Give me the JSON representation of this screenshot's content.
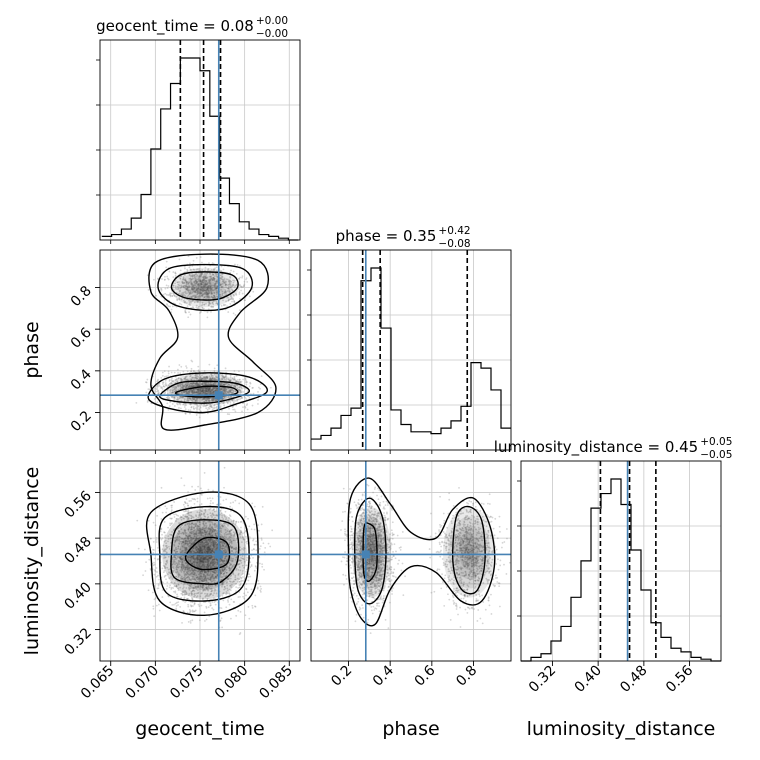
{
  "chart_data": {
    "type": "corner",
    "parameters": [
      "geocent_time",
      "phase",
      "luminosity_distance"
    ],
    "axis_labels": [
      "geocent_time",
      "phase",
      "luminosity_distance"
    ],
    "ranges": [
      [
        0.0638,
        0.0862
      ],
      [
        0.02,
        0.98
      ],
      [
        0.265,
        0.615
      ]
    ],
    "ticks": [
      [
        "0.065",
        "0.070",
        "0.075",
        "0.080",
        "0.085"
      ],
      [
        "0.2",
        "0.4",
        "0.6",
        "0.8"
      ],
      [
        "0.32",
        "0.40",
        "0.48",
        "0.56"
      ]
    ],
    "titles": [
      {
        "main": "geocent_time = 0.08",
        "sup": "+0.00",
        "sub": "−0.00"
      },
      {
        "main": "phase = 0.35",
        "sup": "+0.42",
        "sub": "−0.08"
      },
      {
        "main": "luminosity_distance = 0.45",
        "sup": "+0.05",
        "sub": "−0.05"
      }
    ],
    "truths": [
      0.0771,
      0.283,
      0.4515
    ],
    "quantiles": [
      [
        0.0728,
        0.0754,
        0.0773
      ],
      [
        0.268,
        0.352,
        0.77
      ],
      [
        0.404,
        0.455,
        0.501
      ]
    ],
    "histograms": [
      {
        "bin_start": 0.064,
        "bin_width": 0.0011,
        "counts": [
          0.02,
          0.03,
          0.06,
          0.12,
          0.25,
          0.5,
          0.72,
          0.86,
          1.0,
          1.0,
          0.93,
          0.68,
          0.34,
          0.2,
          0.1,
          0.06,
          0.03,
          0.02,
          0.01,
          0.0
        ]
      },
      {
        "bin_start": 0.02,
        "bin_width": 0.048,
        "counts": [
          0.06,
          0.08,
          0.12,
          0.19,
          0.23,
          0.93,
          1.0,
          0.67,
          0.22,
          0.14,
          0.1,
          0.1,
          0.09,
          0.12,
          0.16,
          0.24,
          0.48,
          0.45,
          0.33,
          0.12
        ]
      },
      {
        "bin_start": 0.265,
        "bin_width": 0.0175,
        "counts": [
          0.0,
          0.02,
          0.04,
          0.11,
          0.19,
          0.35,
          0.55,
          0.84,
          0.92,
          1.0,
          0.86,
          0.61,
          0.39,
          0.21,
          0.13,
          0.07,
          0.05,
          0.02,
          0.01,
          0.0
        ]
      }
    ]
  }
}
